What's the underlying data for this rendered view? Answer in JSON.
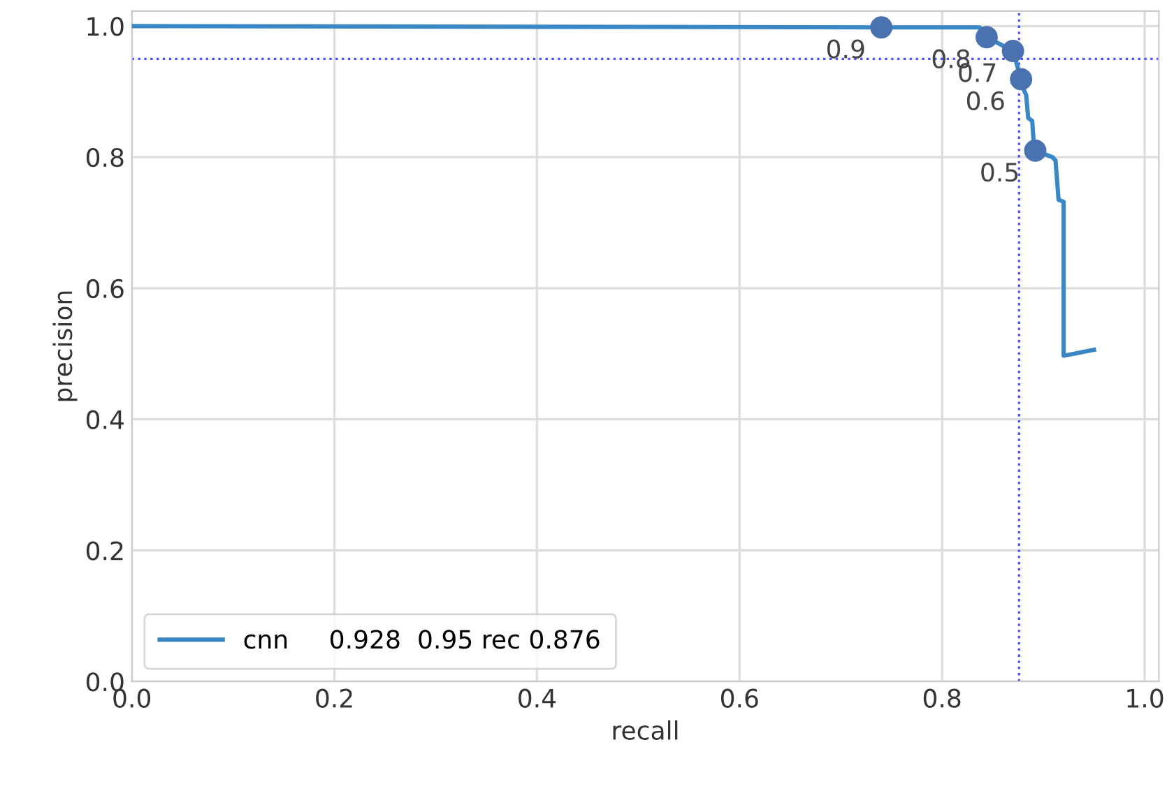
{
  "chart_data": {
    "type": "line",
    "xlabel": "recall",
    "ylabel": "precision",
    "xlim": [
      0,
      1.014
    ],
    "ylim": [
      0,
      1.023
    ],
    "xticks": [
      {
        "value": 0,
        "label": "0.0"
      },
      {
        "value": 0.2,
        "label": "0.2"
      },
      {
        "value": 0.4,
        "label": "0.4"
      },
      {
        "value": 0.6,
        "label": "0.6"
      },
      {
        "value": 0.8,
        "label": "0.8"
      },
      {
        "value": 1,
        "label": "1.0"
      }
    ],
    "yticks": [
      {
        "value": 0,
        "label": "0.0"
      },
      {
        "value": 0.2,
        "label": "0.2"
      },
      {
        "value": 0.4,
        "label": "0.4"
      },
      {
        "value": 0.6,
        "label": "0.6"
      },
      {
        "value": 0.8,
        "label": "0.8"
      },
      {
        "value": 1,
        "label": "1.0"
      }
    ],
    "grid": true,
    "legend": "bottom left",
    "series": [
      {
        "name": "cnn     0.928  0.95 rec 0.876",
        "color": "#3a87c6",
        "marker": "none",
        "line_style": "solid",
        "x": [
          0,
          0.74,
          0.837,
          0.844,
          0.87,
          0.878,
          0.88,
          0.883,
          0.885,
          0.889,
          0.891,
          0.892,
          0.909,
          0.912,
          0.915,
          0.92,
          0.92,
          0.95
        ],
        "values": [
          1.0,
          0.998,
          0.998,
          0.983,
          0.962,
          0.919,
          0.905,
          0.895,
          0.86,
          0.855,
          0.81,
          0.81,
          0.8,
          0.795,
          0.735,
          0.732,
          0.497,
          0.506
        ]
      },
      {
        "type": "scatter",
        "color": "#4a72b0",
        "marker": "circle",
        "x": [
          0.74,
          0.844,
          0.87,
          0.878,
          0.892
        ],
        "values": [
          0.998,
          0.983,
          0.962,
          0.919,
          0.81
        ]
      }
    ],
    "ref_lines": [
      {
        "axis": "y",
        "value": 0.95,
        "color": "#4d4dff",
        "line_style": "dotted"
      },
      {
        "axis": "x",
        "value": 0.876,
        "color": "#4d4dff",
        "line_style": "dotted"
      }
    ],
    "annotations": [
      {
        "text": "0.9",
        "x": 0.74,
        "y": 0.998
      },
      {
        "text": "0.8",
        "x": 0.844,
        "y": 0.983
      },
      {
        "text": "0.7",
        "x": 0.87,
        "y": 0.962
      },
      {
        "text": "0.6",
        "x": 0.878,
        "y": 0.919
      },
      {
        "text": "0.5",
        "x": 0.892,
        "y": 0.81
      }
    ]
  }
}
